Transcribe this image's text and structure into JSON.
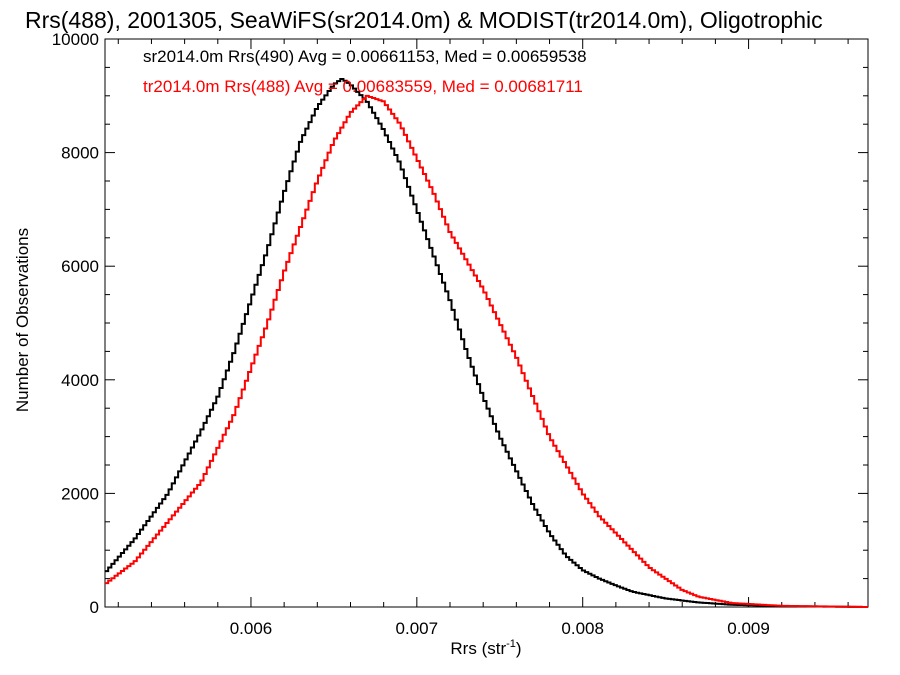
{
  "chart_data": {
    "type": "line",
    "title": "Rrs(488), 2001305, SeaWiFS(sr2014.0m) & MODIST(tr2014.0m), Oligotrophic",
    "xlabel": "Rrs (str",
    "xlabel_sup": "-1",
    "xlabel_suffix": ")",
    "ylabel": "Number of Observations",
    "xlim": [
      0.00512,
      0.00972
    ],
    "ylim": [
      0,
      10000
    ],
    "x_ticks": [
      0.006,
      0.007,
      0.008,
      0.009
    ],
    "x_tick_labels": [
      "0.006",
      "0.007",
      "0.008",
      "0.009"
    ],
    "y_ticks": [
      0,
      2000,
      4000,
      6000,
      8000,
      10000
    ],
    "y_tick_labels": [
      "0",
      "2000",
      "4000",
      "6000",
      "8000",
      "10000"
    ],
    "grid": false,
    "step": true,
    "legend_position": "top-left",
    "series": [
      {
        "name": "sr2014.0m Rrs(490) Avg = 0.00661153, Med = 0.00659538",
        "color": "#000000",
        "x": [
          0.00512,
          0.0053,
          0.0055,
          0.0057,
          0.0058,
          0.0059,
          0.006,
          0.0061,
          0.0062,
          0.0063,
          0.0064,
          0.0065,
          0.00655,
          0.0066,
          0.0067,
          0.0068,
          0.0069,
          0.007,
          0.0071,
          0.0072,
          0.0073,
          0.0074,
          0.0075,
          0.0076,
          0.0077,
          0.0078,
          0.0079,
          0.008,
          0.0081,
          0.0082,
          0.0083,
          0.0085,
          0.0087,
          0.0089,
          0.0092,
          0.00972
        ],
        "y": [
          600,
          1200,
          2000,
          3100,
          3700,
          4500,
          5400,
          6300,
          7300,
          8200,
          8800,
          9200,
          9300,
          9200,
          8900,
          8400,
          7800,
          7000,
          6200,
          5400,
          4500,
          3700,
          3000,
          2400,
          1800,
          1300,
          900,
          650,
          500,
          380,
          270,
          150,
          80,
          40,
          15,
          0
        ]
      },
      {
        "name": "tr2014.0m Rrs(488) Avg = 0.00683559, Med = 0.00681711",
        "color": "#ff0000",
        "x": [
          0.00512,
          0.0053,
          0.0055,
          0.0057,
          0.0058,
          0.0059,
          0.006,
          0.0061,
          0.0062,
          0.0063,
          0.0064,
          0.0065,
          0.0066,
          0.0067,
          0.0068,
          0.0069,
          0.007,
          0.0071,
          0.0072,
          0.0073,
          0.0074,
          0.0075,
          0.0076,
          0.0077,
          0.0078,
          0.0079,
          0.008,
          0.0081,
          0.0082,
          0.0083,
          0.0084,
          0.0085,
          0.0086,
          0.0087,
          0.0089,
          0.0092,
          0.00972
        ],
        "y": [
          400,
          800,
          1500,
          2200,
          2800,
          3400,
          4200,
          5000,
          5900,
          6700,
          7500,
          8200,
          8700,
          9000,
          8900,
          8500,
          7900,
          7300,
          6600,
          6100,
          5600,
          5000,
          4400,
          3700,
          3000,
          2500,
          2000,
          1600,
          1300,
          1000,
          700,
          500,
          300,
          180,
          70,
          20,
          0
        ]
      }
    ]
  }
}
